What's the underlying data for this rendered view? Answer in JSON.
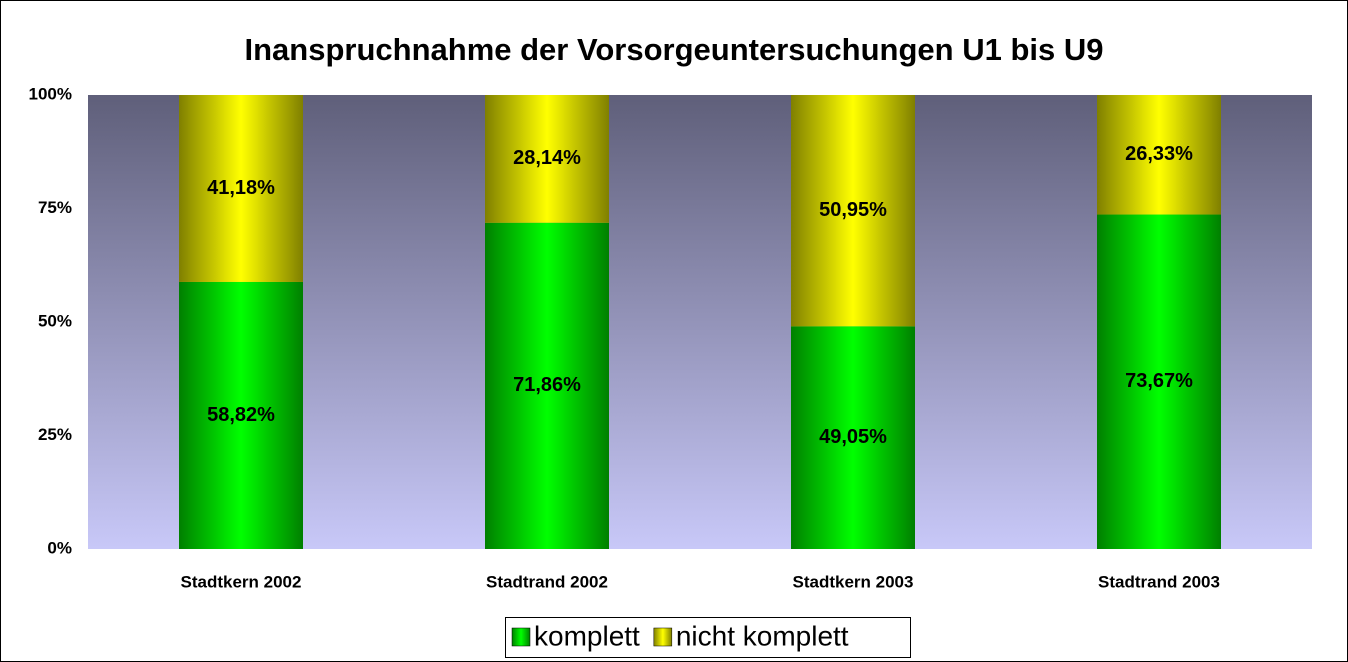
{
  "chart_data": {
    "type": "stacked_bar",
    "title": "Inanspruchnahme der Vorsorgeuntersuchungen U1 bis U9",
    "categories": [
      "Stadtkern 2002",
      "Stadtrand 2002",
      "Stadtkern 2003",
      "Stadtrand 2003"
    ],
    "series": [
      {
        "name": "komplett",
        "color": "#00ff00",
        "values": [
          58.82,
          71.86,
          49.05,
          73.67
        ],
        "value_labels": [
          "58,82%",
          "71,86%",
          "49,05%",
          "73,67%"
        ]
      },
      {
        "name": "nicht komplett",
        "color": "#ffff00",
        "values": [
          41.18,
          28.14,
          50.95,
          26.33
        ],
        "value_labels": [
          "41,18%",
          "28,14%",
          "50,95%",
          "26,33%"
        ]
      }
    ],
    "ylim": [
      0,
      100
    ],
    "yticks": [
      {
        "value": 0,
        "label": "0%"
      },
      {
        "value": 25,
        "label": "25%"
      },
      {
        "value": 50,
        "label": "50%"
      },
      {
        "value": 75,
        "label": "75%"
      },
      {
        "value": 100,
        "label": "100%"
      }
    ],
    "legend": "bottom"
  }
}
